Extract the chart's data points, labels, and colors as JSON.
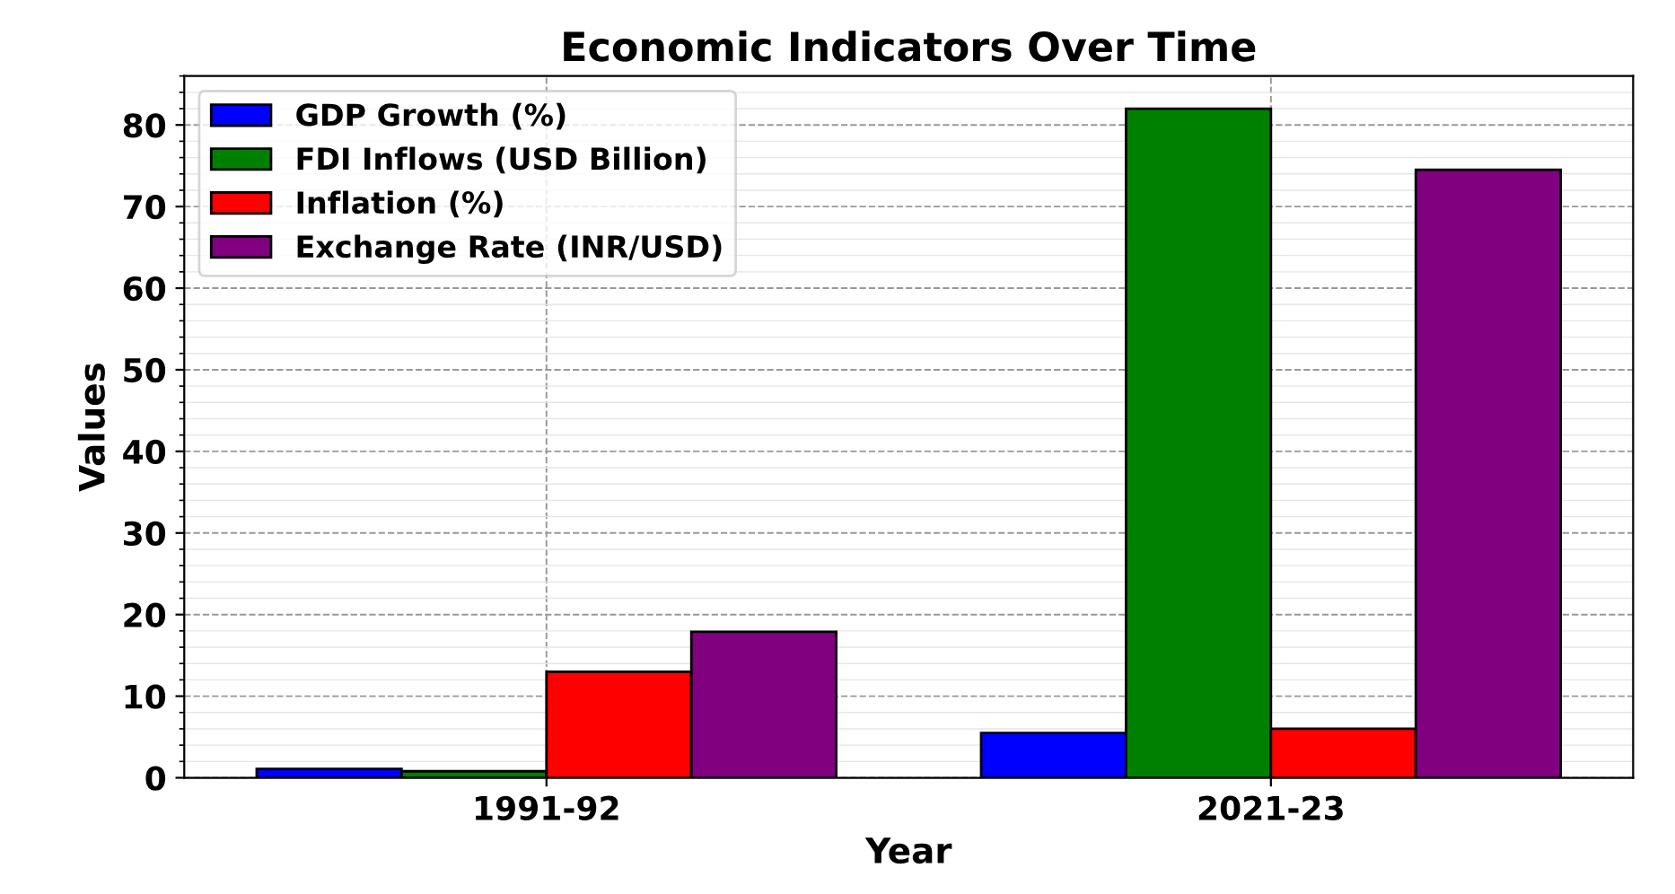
{
  "chart_data": {
    "type": "bar",
    "title": "Economic Indicators Over Time",
    "xlabel": "Year",
    "ylabel": "Values",
    "categories": [
      "1991-92",
      "2021-23"
    ],
    "series": [
      {
        "name": "GDP Growth (%)",
        "color": "#0000ff",
        "values": [
          1.1,
          5.5
        ]
      },
      {
        "name": "FDI Inflows (USD Billion)",
        "color": "#008000",
        "values": [
          0.8,
          82
        ]
      },
      {
        "name": "Inflation (%)",
        "color": "#ff0000",
        "values": [
          13,
          6
        ]
      },
      {
        "name": "Exchange Rate (INR/USD)",
        "color": "#800080",
        "values": [
          17.9,
          74.5
        ]
      }
    ],
    "ylim": [
      0,
      86
    ],
    "yticks": [
      0,
      10,
      20,
      30,
      40,
      50,
      60,
      70,
      80
    ],
    "grid": true,
    "legend": "top left"
  }
}
